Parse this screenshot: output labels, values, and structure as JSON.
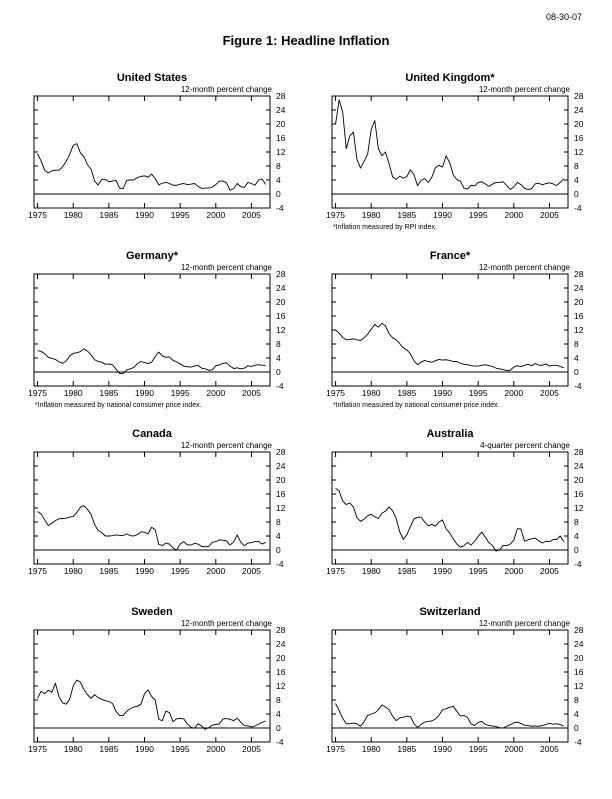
{
  "page": {
    "date_stamp": "08-30-07",
    "figure_title": "Figure 1: Headline Inflation"
  },
  "axes": {
    "x_range": [
      1974.5,
      2007.6
    ],
    "y_range": [
      -4,
      28
    ],
    "x_ticks": [
      1975,
      1980,
      1985,
      1990,
      1995,
      2000,
      2005
    ],
    "y_ticks": [
      -4,
      0,
      4,
      8,
      12,
      16,
      20,
      24,
      28
    ],
    "grid": false,
    "legend": "none",
    "zero_line": true
  },
  "chart_data": [
    {
      "type": "line",
      "title": "United States",
      "unit_label": "12-month percent change",
      "footnote": "",
      "x_start": 1975,
      "x_step": 0.5,
      "x_unit": "year",
      "values": [
        11.5,
        9.4,
        6.8,
        6.0,
        6.6,
        6.8,
        6.8,
        7.7,
        9.3,
        11.3,
        13.9,
        14.4,
        11.8,
        10.7,
        8.4,
        7.1,
        3.7,
        2.6,
        4.2,
        4.2,
        3.5,
        3.7,
        3.9,
        1.7,
        1.5,
        3.9,
        4.0,
        4.0,
        4.7,
        5.0,
        5.2,
        4.8,
        5.7,
        4.4,
        2.6,
        3.1,
        3.3,
        3.0,
        2.5,
        2.5,
        2.8,
        3.0,
        2.7,
        2.8,
        3.0,
        2.2,
        1.6,
        1.7,
        1.7,
        2.0,
        2.7,
        3.7,
        3.7,
        3.2,
        1.1,
        1.5,
        3.0,
        2.1,
        1.9,
        3.3,
        3.0,
        2.5,
        4.0,
        4.3,
        2.7
      ]
    },
    {
      "type": "line",
      "title": "United Kingdom*",
      "unit_label": "12-month percent change",
      "footnote": "*Inflation measured by RPI index.",
      "x_start": 1975,
      "x_step": 0.5,
      "x_unit": "year",
      "values": [
        20.0,
        26.9,
        23.4,
        12.9,
        16.6,
        17.7,
        9.9,
        7.4,
        9.3,
        11.4,
        18.4,
        21.0,
        13.0,
        10.9,
        12.0,
        8.7,
        4.9,
        4.2,
        5.1,
        4.5,
        5.0,
        6.9,
        5.5,
        2.4,
        3.9,
        4.4,
        3.3,
        4.8,
        7.5,
        8.2,
        7.7,
        10.9,
        9.0,
        5.5,
        4.1,
        3.7,
        1.7,
        1.4,
        2.5,
        2.3,
        3.3,
        3.5,
        2.9,
        2.2,
        2.8,
        3.3,
        3.3,
        3.5,
        2.4,
        1.3,
        2.0,
        3.3,
        2.7,
        1.6,
        1.3,
        1.5,
        2.9,
        3.1,
        2.6,
        3.0,
        3.2,
        2.9,
        2.4,
        3.3,
        4.3
      ]
    },
    {
      "type": "line",
      "title": "Germany*",
      "unit_label": "12-month percent change",
      "footnote": "*Inflation measured by national consumer price index.",
      "x_start": 1975,
      "x_step": 0.5,
      "x_unit": "year",
      "values": [
        6.1,
        5.9,
        5.2,
        4.2,
        3.9,
        3.6,
        2.9,
        2.5,
        3.1,
        4.6,
        5.3,
        5.5,
        5.8,
        6.6,
        6.0,
        4.9,
        3.5,
        3.0,
        2.8,
        2.2,
        2.3,
        2.1,
        0.8,
        -0.4,
        -0.5,
        0.6,
        0.9,
        1.3,
        2.4,
        3.0,
        2.7,
        2.4,
        2.8,
        4.4,
        5.7,
        4.6,
        4.2,
        4.3,
        3.3,
        2.9,
        2.3,
        1.7,
        1.5,
        1.4,
        1.7,
        1.9,
        1.1,
        0.9,
        0.5,
        0.6,
        1.8,
        2.0,
        2.5,
        2.6,
        1.7,
        1.0,
        1.2,
        0.9,
        1.1,
        1.8,
        1.6,
        1.9,
        2.1,
        1.9,
        1.9
      ]
    },
    {
      "type": "line",
      "title": "France*",
      "unit_label": "12-month percent change",
      "footnote": "*Inflation measured by national consumer price index.",
      "x_start": 1975,
      "x_step": 0.5,
      "x_unit": "year",
      "values": [
        12.0,
        11.1,
        9.9,
        9.2,
        9.3,
        9.5,
        9.2,
        9.0,
        9.8,
        10.8,
        12.2,
        13.6,
        12.8,
        13.9,
        13.2,
        11.0,
        9.8,
        9.2,
        8.1,
        6.9,
        6.3,
        5.2,
        3.2,
        2.1,
        2.8,
        3.3,
        3.0,
        2.8,
        3.2,
        3.6,
        3.4,
        3.5,
        3.3,
        3.0,
        3.0,
        2.5,
        2.2,
        2.1,
        1.8,
        1.7,
        1.7,
        1.9,
        2.1,
        1.8,
        1.6,
        1.1,
        0.9,
        0.7,
        0.4,
        0.5,
        1.4,
        1.8,
        1.5,
        1.9,
        2.2,
        1.8,
        2.4,
        2.0,
        1.9,
        2.3,
        1.7,
        1.9,
        1.9,
        1.6,
        1.2
      ]
    },
    {
      "type": "line",
      "title": "Canada",
      "unit_label": "12-month percent change",
      "footnote": "",
      "x_start": 1975,
      "x_step": 0.5,
      "x_unit": "year",
      "values": [
        11.0,
        10.3,
        8.6,
        7.0,
        7.6,
        8.4,
        8.9,
        9.0,
        9.1,
        9.4,
        9.6,
        10.7,
        12.2,
        12.7,
        11.6,
        10.2,
        7.3,
        5.5,
        5.0,
        4.0,
        4.0,
        4.1,
        4.3,
        4.2,
        4.1,
        4.6,
        4.1,
        4.0,
        4.4,
        5.2,
        5.1,
        4.6,
        6.5,
        5.8,
        1.6,
        1.3,
        2.0,
        1.7,
        0.6,
        0.0,
        1.7,
        2.4,
        1.5,
        1.4,
        1.9,
        1.7,
        1.0,
        0.9,
        1.0,
        2.2,
        2.4,
        2.9,
        2.8,
        2.6,
        1.4,
        2.3,
        4.3,
        2.2,
        1.2,
        2.0,
        2.1,
        2.4,
        2.4,
        1.7,
        2.2
      ]
    },
    {
      "type": "line",
      "title": "Australia",
      "unit_label": "4-quarter percent change",
      "footnote": "",
      "x_start": 1975,
      "x_step": 0.5,
      "x_unit": "year",
      "values": [
        17.6,
        16.9,
        14.0,
        13.0,
        13.4,
        12.3,
        9.2,
        8.2,
        8.8,
        9.8,
        10.2,
        9.5,
        9.0,
        10.5,
        11.1,
        12.3,
        11.2,
        9.0,
        5.2,
        3.0,
        4.4,
        6.7,
        8.9,
        9.3,
        9.4,
        8.0,
        6.9,
        7.3,
        6.8,
        8.0,
        8.6,
        6.1,
        4.9,
        3.2,
        1.7,
        0.8,
        1.2,
        2.2,
        1.4,
        2.5,
        3.9,
        5.1,
        3.7,
        2.1,
        1.3,
        -0.3,
        0.0,
        1.3,
        1.2,
        1.7,
        2.8,
        6.1,
        6.0,
        2.5,
        2.9,
        3.2,
        3.4,
        2.6,
        2.0,
        2.5,
        2.4,
        3.0,
        3.0,
        4.0,
        2.4
      ]
    },
    {
      "type": "line",
      "title": "Sweden",
      "unit_label": "12-month percent change",
      "footnote": "",
      "x_start": 1975,
      "x_step": 0.5,
      "x_unit": "year",
      "values": [
        8.5,
        10.5,
        9.8,
        10.8,
        10.2,
        12.8,
        9.0,
        7.2,
        6.8,
        8.2,
        12.0,
        13.7,
        13.1,
        11.0,
        9.5,
        8.5,
        9.5,
        8.7,
        8.2,
        7.8,
        7.6,
        7.0,
        4.8,
        3.6,
        3.6,
        4.8,
        5.5,
        6.0,
        6.2,
        6.8,
        9.8,
        10.9,
        9.0,
        8.0,
        2.5,
        2.1,
        4.8,
        4.4,
        1.8,
        2.6,
        2.8,
        2.6,
        1.2,
        0.2,
        -0.1,
        1.2,
        0.6,
        -0.4,
        0.1,
        0.8,
        1.0,
        1.2,
        2.6,
        2.7,
        2.5,
        2.1,
        2.8,
        1.7,
        0.7,
        0.6,
        0.3,
        0.6,
        1.1,
        1.6,
        2.0
      ]
    },
    {
      "type": "line",
      "title": "Switzerland",
      "unit_label": "12-month percent change",
      "footnote": "",
      "x_start": 1975,
      "x_step": 0.5,
      "x_unit": "year",
      "values": [
        7.0,
        5.0,
        2.8,
        1.2,
        1.2,
        1.4,
        1.2,
        0.5,
        1.8,
        3.6,
        4.0,
        4.3,
        5.2,
        6.6,
        6.0,
        5.2,
        3.4,
        2.1,
        2.9,
        3.1,
        3.4,
        3.3,
        1.2,
        0.2,
        1.0,
        1.7,
        1.9,
        2.0,
        2.6,
        3.6,
        5.2,
        5.5,
        5.9,
        6.2,
        4.8,
        3.4,
        3.6,
        3.0,
        1.2,
        0.7,
        1.6,
        1.9,
        1.0,
        0.7,
        0.6,
        0.4,
        0.1,
        0.0,
        0.5,
        0.9,
        1.5,
        1.7,
        1.3,
        0.8,
        0.7,
        0.5,
        0.6,
        0.5,
        0.7,
        1.0,
        1.3,
        1.1,
        1.2,
        1.0,
        0.5
      ]
    }
  ]
}
